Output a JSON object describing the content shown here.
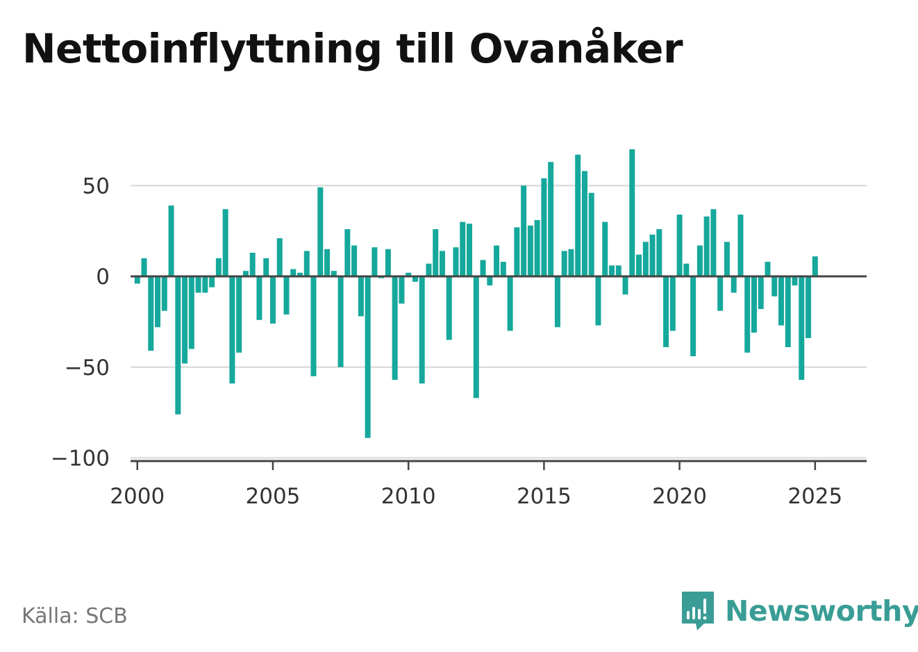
{
  "title": "Nettoinflyttning till Ovanåker",
  "source": "Källa: SCB",
  "brand": "Newsworthy",
  "colors": {
    "bar": "#16a89c",
    "grid": "#dddddd",
    "baseline": "#444444",
    "brand": "#3a9d95"
  },
  "chart_data": {
    "type": "bar",
    "title": "Nettoinflyttning till Ovanåker",
    "xlabel": "",
    "ylabel": "",
    "ylim": [
      -100,
      70
    ],
    "xlim": [
      1999.75,
      2026.9
    ],
    "grid": true,
    "legend": "none",
    "yticks": [
      50,
      0,
      -50,
      -100
    ],
    "ytick_labels": [
      "50",
      "0",
      "−50",
      "−100"
    ],
    "xticks": [
      2000,
      2005,
      2010,
      2015,
      2020,
      2025
    ],
    "xtick_labels": [
      "2000",
      "2005",
      "2010",
      "2015",
      "2020",
      "2025"
    ],
    "series": [
      {
        "start": 2000.0,
        "step": 0.25,
        "period": "kvartal",
        "values": [
          -4,
          10,
          -41,
          -28,
          -19,
          39,
          -76,
          -48,
          -40,
          -9,
          -9,
          -6,
          10,
          37,
          -59,
          -42,
          3,
          13,
          -24,
          10,
          -26,
          21,
          -21,
          4,
          2,
          14,
          -55,
          49,
          15,
          3,
          -50,
          26,
          17,
          -22,
          -89,
          16,
          -1,
          15,
          -57,
          -15,
          2,
          -3,
          -59,
          7,
          26,
          14,
          -35,
          16,
          30,
          29,
          -67,
          9,
          -5,
          17,
          8,
          -30,
          27,
          50,
          28,
          31,
          54,
          63,
          -28,
          14,
          15,
          67,
          58,
          46,
          -27,
          30,
          6,
          6,
          -10,
          70,
          12,
          19,
          23,
          26,
          -39,
          -30,
          34,
          7,
          -44,
          17,
          33,
          37,
          -19,
          19,
          -9,
          34,
          -42,
          -31,
          -18,
          8,
          -11,
          -27,
          -39,
          -5,
          -57,
          -34,
          11
        ]
      }
    ]
  }
}
